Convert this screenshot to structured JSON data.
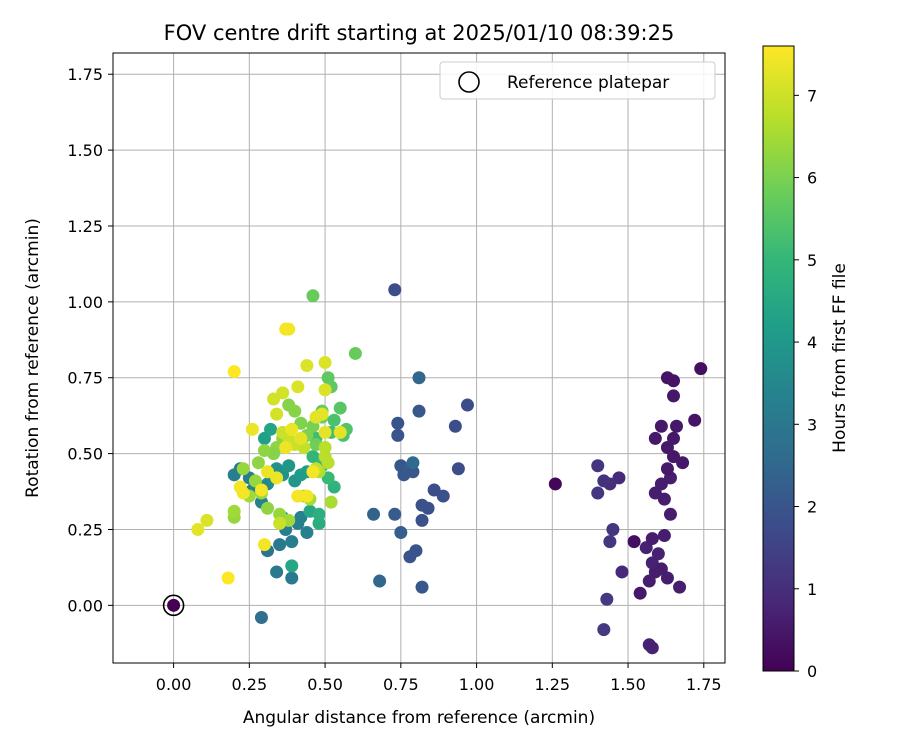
{
  "chart_data": {
    "type": "scatter",
    "title": "FOV centre drift starting at 2025/01/10 08:39:25",
    "xlabel": "Angular distance from reference (arcmin)",
    "ylabel": "Rotation from reference (arcmin)",
    "xlim": [
      -0.2,
      1.82
    ],
    "ylim": [
      -0.19,
      1.82
    ],
    "x_ticks": [
      "0.00",
      "0.25",
      "0.50",
      "0.75",
      "1.00",
      "1.25",
      "1.50",
      "1.75"
    ],
    "y_ticks": [
      "0.00",
      "0.25",
      "0.50",
      "0.75",
      "1.00",
      "1.25",
      "1.50",
      "1.75"
    ],
    "grid": true,
    "legend": {
      "position": "top-right",
      "label": "Reference platepar"
    },
    "reference_point": [
      0.0,
      0.0
    ],
    "colorbar": {
      "label": "Hours from first FF file",
      "range": [
        0,
        7.6
      ],
      "ticks": [
        "0",
        "1",
        "2",
        "3",
        "4",
        "5",
        "6",
        "7"
      ],
      "colormap": "viridis",
      "colors": [
        "#440154",
        "#482878",
        "#3e4989",
        "#31688e",
        "#26828e",
        "#1f9e89",
        "#35b779",
        "#6ece58",
        "#b5de2b",
        "#fde725"
      ]
    },
    "points": [
      [
        0.0,
        0.0,
        0.0
      ],
      [
        1.26,
        0.4,
        0.1
      ],
      [
        1.52,
        0.21,
        0.3
      ],
      [
        1.54,
        0.04,
        0.5
      ],
      [
        1.57,
        0.08,
        0.6
      ],
      [
        1.59,
        0.11,
        0.6
      ],
      [
        1.63,
        0.09,
        0.6
      ],
      [
        1.67,
        0.06,
        0.6
      ],
      [
        1.58,
        0.14,
        0.7
      ],
      [
        1.6,
        0.17,
        0.7
      ],
      [
        1.62,
        0.23,
        0.6
      ],
      [
        1.64,
        0.3,
        0.6
      ],
      [
        1.62,
        0.35,
        0.6
      ],
      [
        1.59,
        0.37,
        0.6
      ],
      [
        1.61,
        0.4,
        0.6
      ],
      [
        1.64,
        0.42,
        0.6
      ],
      [
        1.63,
        0.45,
        0.5
      ],
      [
        1.63,
        0.52,
        0.5
      ],
      [
        1.65,
        0.55,
        0.5
      ],
      [
        1.68,
        0.47,
        0.5
      ],
      [
        1.66,
        0.59,
        0.5
      ],
      [
        1.61,
        0.59,
        0.5
      ],
      [
        1.59,
        0.55,
        0.5
      ],
      [
        1.65,
        0.69,
        0.5
      ],
      [
        1.63,
        0.75,
        0.4
      ],
      [
        1.65,
        0.74,
        0.4
      ],
      [
        1.74,
        0.78,
        0.3
      ],
      [
        1.72,
        0.61,
        0.4
      ],
      [
        1.65,
        0.49,
        0.5
      ],
      [
        1.58,
        -0.14,
        0.7
      ],
      [
        1.57,
        -0.13,
        0.7
      ],
      [
        1.56,
        0.19,
        0.7
      ],
      [
        1.61,
        0.12,
        0.6
      ],
      [
        1.58,
        0.22,
        0.6
      ],
      [
        1.47,
        0.42,
        0.9
      ],
      [
        1.48,
        0.11,
        0.9
      ],
      [
        1.44,
        0.4,
        1.0
      ],
      [
        1.42,
        0.41,
        1.1
      ],
      [
        1.4,
        0.46,
        1.2
      ],
      [
        1.4,
        0.37,
        1.2
      ],
      [
        1.45,
        0.25,
        1.2
      ],
      [
        1.44,
        0.21,
        1.2
      ],
      [
        1.43,
        0.02,
        1.3
      ],
      [
        1.42,
        -0.08,
        1.3
      ],
      [
        0.73,
        1.04,
        1.8
      ],
      [
        0.97,
        0.66,
        1.8
      ],
      [
        0.93,
        0.59,
        1.8
      ],
      [
        0.94,
        0.45,
        1.8
      ],
      [
        0.89,
        0.36,
        1.9
      ],
      [
        0.86,
        0.38,
        1.8
      ],
      [
        0.82,
        0.33,
        1.9
      ],
      [
        0.84,
        0.32,
        1.9
      ],
      [
        0.82,
        0.28,
        1.9
      ],
      [
        0.8,
        0.18,
        2.0
      ],
      [
        0.78,
        0.16,
        2.0
      ],
      [
        0.82,
        0.06,
        2.1
      ],
      [
        0.74,
        0.56,
        2.0
      ],
      [
        0.74,
        0.6,
        2.0
      ],
      [
        0.75,
        0.46,
        2.1
      ],
      [
        0.76,
        0.43,
        2.1
      ],
      [
        0.78,
        0.45,
        2.2
      ],
      [
        0.79,
        0.44,
        2.1
      ],
      [
        0.81,
        0.75,
        2.5
      ],
      [
        0.81,
        0.64,
        2.1
      ],
      [
        0.79,
        0.47,
        2.6
      ],
      [
        0.73,
        0.3,
        2.2
      ],
      [
        0.75,
        0.24,
        2.3
      ],
      [
        0.66,
        0.3,
        2.4
      ],
      [
        0.68,
        0.08,
        2.5
      ],
      [
        0.29,
        -0.04,
        2.8
      ],
      [
        0.31,
        0.18,
        2.9
      ],
      [
        0.34,
        0.11,
        3.1
      ],
      [
        0.39,
        0.09,
        3.1
      ],
      [
        0.35,
        0.2,
        3.1
      ],
      [
        0.39,
        0.21,
        3.2
      ],
      [
        0.37,
        0.25,
        3.2
      ],
      [
        0.41,
        0.27,
        3.2
      ],
      [
        0.44,
        0.24,
        3.3
      ],
      [
        0.42,
        0.29,
        3.3
      ],
      [
        0.22,
        0.45,
        3.1
      ],
      [
        0.25,
        0.42,
        3.2
      ],
      [
        0.2,
        0.43,
        3.2
      ],
      [
        0.26,
        0.38,
        3.3
      ],
      [
        0.29,
        0.34,
        3.4
      ],
      [
        0.31,
        0.4,
        3.6
      ],
      [
        0.33,
        0.42,
        3.7
      ],
      [
        0.34,
        0.45,
        3.8
      ],
      [
        0.36,
        0.43,
        3.9
      ],
      [
        0.38,
        0.46,
        4.0
      ],
      [
        0.4,
        0.41,
        4.0
      ],
      [
        0.42,
        0.43,
        4.1
      ],
      [
        0.44,
        0.44,
        4.2
      ],
      [
        0.3,
        0.55,
        4.3
      ],
      [
        0.32,
        0.58,
        4.4
      ],
      [
        0.39,
        0.13,
        4.5
      ],
      [
        0.36,
        0.29,
        4.5
      ],
      [
        0.45,
        0.31,
        4.5
      ],
      [
        0.48,
        0.27,
        4.7
      ],
      [
        0.48,
        0.3,
        4.8
      ],
      [
        0.53,
        0.39,
        4.9
      ],
      [
        0.46,
        0.49,
        5.0
      ],
      [
        0.49,
        0.46,
        5.0
      ],
      [
        0.5,
        0.48,
        5.1
      ],
      [
        0.51,
        0.42,
        5.1
      ],
      [
        0.47,
        0.55,
        5.2
      ],
      [
        0.52,
        0.57,
        5.3
      ],
      [
        0.53,
        0.61,
        5.4
      ],
      [
        0.56,
        0.56,
        5.4
      ],
      [
        0.57,
        0.58,
        5.5
      ],
      [
        0.55,
        0.65,
        5.6
      ],
      [
        0.51,
        0.75,
        5.7
      ],
      [
        0.52,
        0.72,
        5.7
      ],
      [
        0.46,
        1.02,
        5.8
      ],
      [
        0.6,
        0.83,
        5.8
      ],
      [
        0.49,
        0.64,
        5.8
      ],
      [
        0.49,
        0.62,
        5.9
      ],
      [
        0.47,
        0.53,
        5.9
      ],
      [
        0.46,
        0.59,
        6.0
      ],
      [
        0.44,
        0.56,
        6.1
      ],
      [
        0.42,
        0.6,
        6.1
      ],
      [
        0.4,
        0.64,
        6.2
      ],
      [
        0.38,
        0.66,
        6.2
      ],
      [
        0.36,
        0.55,
        6.3
      ],
      [
        0.34,
        0.52,
        6.3
      ],
      [
        0.33,
        0.5,
        6.2
      ],
      [
        0.3,
        0.51,
        6.3
      ],
      [
        0.28,
        0.47,
        6.3
      ],
      [
        0.27,
        0.41,
        6.4
      ],
      [
        0.23,
        0.45,
        6.4
      ],
      [
        0.25,
        0.36,
        6.5
      ],
      [
        0.29,
        0.37,
        6.4
      ],
      [
        0.31,
        0.32,
        6.3
      ],
      [
        0.2,
        0.29,
        6.4
      ],
      [
        0.2,
        0.31,
        6.5
      ],
      [
        0.35,
        0.3,
        6.4
      ],
      [
        0.38,
        0.28,
        6.5
      ],
      [
        0.43,
        0.36,
        6.6
      ],
      [
        0.45,
        0.35,
        6.6
      ],
      [
        0.52,
        0.34,
        6.6
      ],
      [
        0.46,
        0.44,
        6.7
      ],
      [
        0.48,
        0.44,
        6.7
      ],
      [
        0.5,
        0.49,
        6.8
      ],
      [
        0.51,
        0.47,
        6.8
      ],
      [
        0.5,
        0.52,
        6.8
      ],
      [
        0.47,
        0.45,
        6.9
      ],
      [
        0.43,
        0.52,
        6.9
      ],
      [
        0.4,
        0.53,
        7.0
      ],
      [
        0.38,
        0.55,
        7.0
      ],
      [
        0.36,
        0.57,
        7.0
      ],
      [
        0.34,
        0.63,
        7.1
      ],
      [
        0.33,
        0.68,
        7.1
      ],
      [
        0.36,
        0.7,
        7.1
      ],
      [
        0.41,
        0.72,
        7.2
      ],
      [
        0.44,
        0.79,
        7.2
      ],
      [
        0.5,
        0.8,
        7.2
      ],
      [
        0.5,
        0.71,
        7.2
      ],
      [
        0.47,
        0.62,
        7.3
      ],
      [
        0.49,
        0.63,
        7.3
      ],
      [
        0.5,
        0.57,
        7.3
      ],
      [
        0.55,
        0.57,
        7.3
      ],
      [
        0.42,
        0.55,
        7.3
      ],
      [
        0.39,
        0.58,
        7.4
      ],
      [
        0.37,
        0.52,
        7.4
      ],
      [
        0.34,
        0.42,
        7.4
      ],
      [
        0.31,
        0.44,
        7.4
      ],
      [
        0.29,
        0.38,
        7.5
      ],
      [
        0.22,
        0.39,
        7.5
      ],
      [
        0.23,
        0.37,
        7.5
      ],
      [
        0.26,
        0.58,
        7.4
      ],
      [
        0.3,
        0.2,
        7.5
      ],
      [
        0.37,
        0.91,
        7.5
      ],
      [
        0.38,
        0.91,
        7.5
      ],
      [
        0.2,
        0.77,
        7.6
      ],
      [
        0.18,
        0.09,
        7.6
      ],
      [
        0.08,
        0.25,
        7.3
      ],
      [
        0.11,
        0.28,
        7.2
      ],
      [
        0.41,
        0.36,
        7.5
      ],
      [
        0.44,
        0.36,
        7.5
      ],
      [
        0.46,
        0.44,
        7.5
      ],
      [
        0.35,
        0.27,
        7.0
      ]
    ]
  }
}
